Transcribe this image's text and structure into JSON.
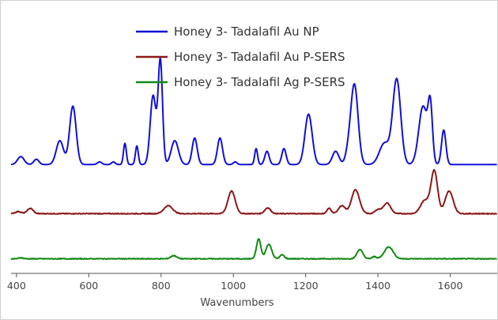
{
  "chart_data": {
    "type": "line",
    "title": "",
    "xlabel": "Wavenumbers",
    "ylabel": "",
    "xlim": [
      385,
      1730
    ],
    "ylim": [
      0,
      1
    ],
    "x_ticks": [
      400,
      600,
      800,
      1000,
      1200,
      1400,
      1600
    ],
    "x_tick_labels": [
      "400",
      "600",
      "800",
      "1000",
      "1200",
      "1400",
      "1600"
    ],
    "grid": false,
    "legend_position": "top-center",
    "y_axis_visible": false,
    "series": [
      {
        "name": "Honey 3- Tadalafil Au NP",
        "color": "#1010d8",
        "baseline": 0.41,
        "noise": 0.0,
        "peaks": [
          [
            412,
            0.03,
            9
          ],
          [
            455,
            0.02,
            7
          ],
          [
            520,
            0.09,
            10
          ],
          [
            556,
            0.22,
            9
          ],
          [
            630,
            0.01,
            6
          ],
          [
            668,
            0.01,
            5
          ],
          [
            700,
            0.08,
            4
          ],
          [
            733,
            0.07,
            4
          ],
          [
            778,
            0.26,
            8
          ],
          [
            798,
            0.39,
            6
          ],
          [
            838,
            0.09,
            10
          ],
          [
            893,
            0.1,
            7
          ],
          [
            963,
            0.1,
            7
          ],
          [
            1005,
            0.01,
            5
          ],
          [
            1063,
            0.06,
            4
          ],
          [
            1093,
            0.05,
            6
          ],
          [
            1140,
            0.06,
            6
          ],
          [
            1208,
            0.19,
            10
          ],
          [
            1283,
            0.05,
            9
          ],
          [
            1335,
            0.3,
            10
          ],
          [
            1318,
            0.04,
            8
          ],
          [
            1418,
            0.08,
            14
          ],
          [
            1452,
            0.32,
            11
          ],
          [
            1525,
            0.22,
            12
          ],
          [
            1545,
            0.2,
            6
          ],
          [
            1582,
            0.13,
            6
          ]
        ]
      },
      {
        "name": "Honey 3- Tadalafil Au P-SERS",
        "color": "#8b1a1a",
        "baseline": 0.225,
        "noise": 0.0015,
        "peaks": [
          [
            405,
            0.008,
            8
          ],
          [
            438,
            0.02,
            8
          ],
          [
            820,
            0.03,
            12
          ],
          [
            995,
            0.085,
            10
          ],
          [
            1095,
            0.022,
            8
          ],
          [
            1265,
            0.02,
            6
          ],
          [
            1300,
            0.03,
            9
          ],
          [
            1338,
            0.09,
            11
          ],
          [
            1400,
            0.015,
            8
          ],
          [
            1425,
            0.04,
            10
          ],
          [
            1530,
            0.05,
            12
          ],
          [
            1556,
            0.16,
            9
          ],
          [
            1597,
            0.085,
            11
          ]
        ]
      },
      {
        "name": "Honey 3- Tadalafil Ag P-SERS",
        "color": "#138a13",
        "baseline": 0.055,
        "noise": 0.0015,
        "peaks": [
          [
            412,
            0.004,
            6
          ],
          [
            835,
            0.012,
            8
          ],
          [
            1070,
            0.075,
            6
          ],
          [
            1098,
            0.055,
            8
          ],
          [
            1135,
            0.015,
            6
          ],
          [
            1350,
            0.035,
            8
          ],
          [
            1430,
            0.045,
            12
          ],
          [
            1390,
            0.008,
            6
          ]
        ]
      }
    ]
  }
}
